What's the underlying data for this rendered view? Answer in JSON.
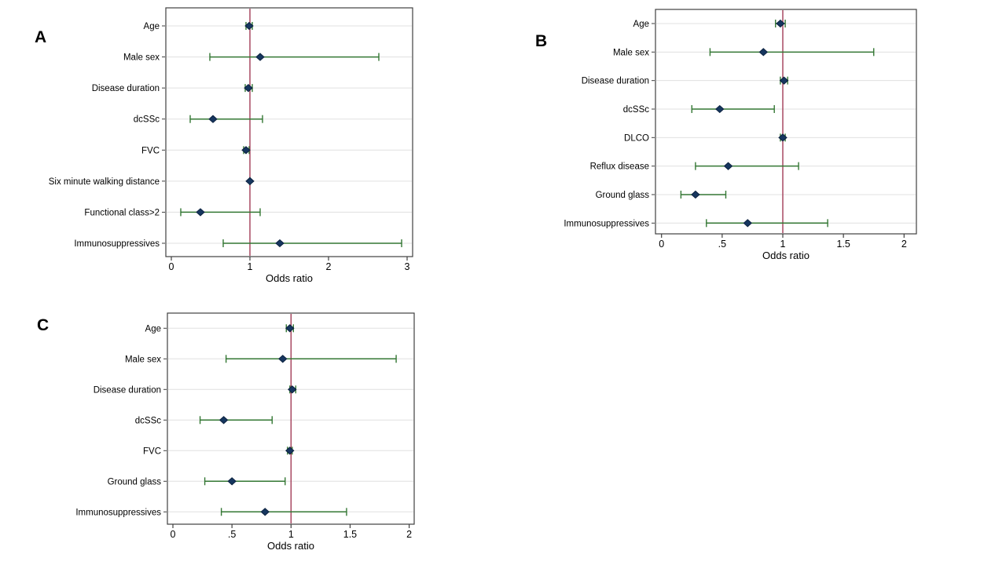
{
  "figure": {
    "background": "#ffffff",
    "colors": {
      "ci_line": "#337733",
      "point_fill": "#16365f",
      "point_stroke": "#0d2340",
      "refline": "#a23d57",
      "gridline": "#e0e0e0",
      "axis_border": "#3f3f3f",
      "text": "#000000"
    }
  },
  "chart_data": [
    {
      "type": "scatter",
      "subtype": "forest-plot",
      "panel": "A",
      "xlabel": "Odds ratio",
      "xlim": [
        0,
        3.07
      ],
      "refline": 1,
      "grid": true,
      "xticks": [
        0,
        1,
        2,
        3
      ],
      "xtick_labels": [
        "0",
        "1",
        "2",
        "3"
      ],
      "rows": [
        {
          "label": "Age",
          "or": 0.99,
          "ci_low": 0.95,
          "ci_high": 1.03
        },
        {
          "label": "Male sex",
          "or": 1.13,
          "ci_low": 0.49,
          "ci_high": 2.64
        },
        {
          "label": "Disease duration",
          "or": 0.98,
          "ci_low": 0.94,
          "ci_high": 1.03
        },
        {
          "label": "dcSSc",
          "or": 0.53,
          "ci_low": 0.24,
          "ci_high": 1.16
        },
        {
          "label": "FVC",
          "or": 0.95,
          "ci_low": 0.92,
          "ci_high": 0.99
        },
        {
          "label": "Six minute walking distance",
          "or": 1.0,
          "ci_low": 1.0,
          "ci_high": 1.0
        },
        {
          "label": "Functional class>2",
          "or": 0.37,
          "ci_low": 0.12,
          "ci_high": 1.13
        },
        {
          "label": "Immunosuppressives",
          "or": 1.38,
          "ci_low": 0.66,
          "ci_high": 2.93
        }
      ]
    },
    {
      "type": "scatter",
      "subtype": "forest-plot",
      "panel": "B",
      "xlabel": "Odds ratio",
      "xlim": [
        0,
        2.1
      ],
      "refline": 1,
      "grid": true,
      "xticks": [
        0,
        0.5,
        1,
        1.5,
        2
      ],
      "xtick_labels": [
        "0",
        ".5",
        "1",
        "1.5",
        "2"
      ],
      "rows": [
        {
          "label": "Age",
          "or": 0.98,
          "ci_low": 0.94,
          "ci_high": 1.02
        },
        {
          "label": "Male sex",
          "or": 0.84,
          "ci_low": 0.4,
          "ci_high": 1.75
        },
        {
          "label": "Disease duration",
          "or": 1.01,
          "ci_low": 0.98,
          "ci_high": 1.04
        },
        {
          "label": "dcSSc",
          "or": 0.48,
          "ci_low": 0.25,
          "ci_high": 0.93
        },
        {
          "label": "DLCO",
          "or": 1.0,
          "ci_low": 0.98,
          "ci_high": 1.02
        },
        {
          "label": "Reflux disease",
          "or": 0.55,
          "ci_low": 0.28,
          "ci_high": 1.13
        },
        {
          "label": "Ground glass",
          "or": 0.28,
          "ci_low": 0.16,
          "ci_high": 0.53
        },
        {
          "label": "Immunosuppressives",
          "or": 0.71,
          "ci_low": 0.37,
          "ci_high": 1.37
        }
      ]
    },
    {
      "type": "scatter",
      "subtype": "forest-plot",
      "panel": "C",
      "xlabel": "Odds ratio",
      "xlim": [
        0,
        2.04
      ],
      "refline": 1,
      "grid": true,
      "xticks": [
        0,
        0.5,
        1,
        1.5,
        2
      ],
      "xtick_labels": [
        "0",
        ".5",
        "1",
        "1.5",
        "2"
      ],
      "rows": [
        {
          "label": "Age",
          "or": 0.99,
          "ci_low": 0.96,
          "ci_high": 1.02
        },
        {
          "label": "Male sex",
          "or": 0.93,
          "ci_low": 0.45,
          "ci_high": 1.89
        },
        {
          "label": "Disease duration",
          "or": 1.01,
          "ci_low": 0.99,
          "ci_high": 1.04
        },
        {
          "label": "dcSSc",
          "or": 0.43,
          "ci_low": 0.23,
          "ci_high": 0.84
        },
        {
          "label": "FVC",
          "or": 0.99,
          "ci_low": 0.97,
          "ci_high": 1.01
        },
        {
          "label": "Ground glass",
          "or": 0.5,
          "ci_low": 0.27,
          "ci_high": 0.95
        },
        {
          "label": "Immunosuppressives",
          "or": 0.78,
          "ci_low": 0.41,
          "ci_high": 1.47
        }
      ]
    }
  ]
}
